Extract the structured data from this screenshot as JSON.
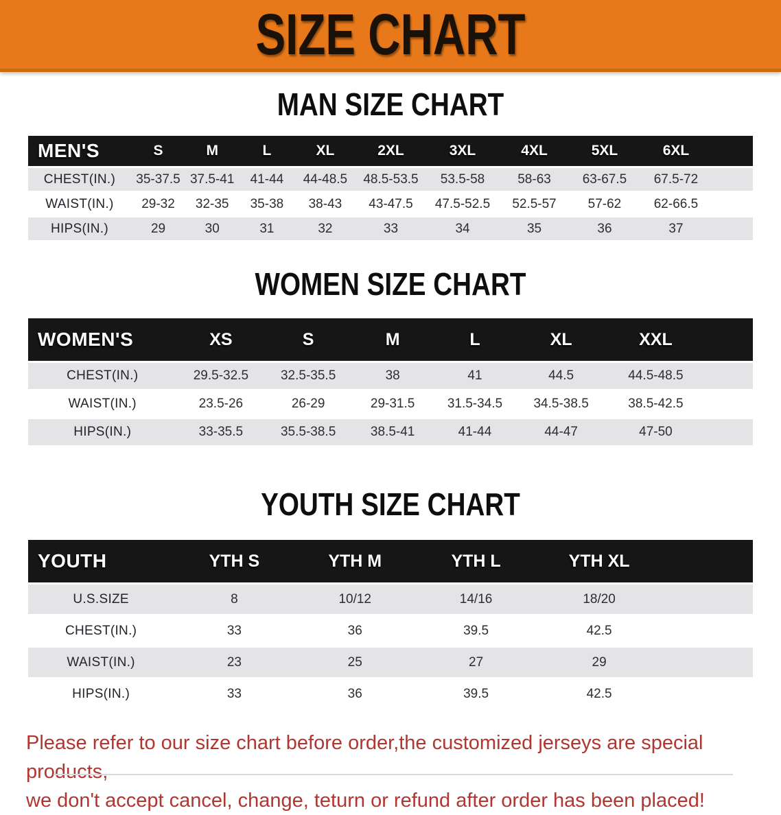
{
  "banner": {
    "title": "SIZE CHART"
  },
  "sections": {
    "men": {
      "title": "MAN SIZE CHART",
      "table": {
        "header_label": "MEN'S",
        "columns": [
          "S",
          "M",
          "L",
          "XL",
          "2XL",
          "3XL",
          "4XL",
          "5XL",
          "6XL"
        ],
        "rows": [
          {
            "label": "CHEST(IN.)",
            "values": [
              "35-37.5",
              "37.5-41",
              "41-44",
              "44-48.5",
              "48.5-53.5",
              "53.5-58",
              "58-63",
              "63-67.5",
              "67.5-72"
            ]
          },
          {
            "label": "WAIST(IN.)",
            "values": [
              "29-32",
              "32-35",
              "35-38",
              "38-43",
              "43-47.5",
              "47.5-52.5",
              "52.5-57",
              "57-62",
              "62-66.5"
            ]
          },
          {
            "label": "HIPS(IN.)",
            "values": [
              "29",
              "30",
              "31",
              "32",
              "33",
              "34",
              "35",
              "36",
              "37"
            ]
          }
        ]
      }
    },
    "women": {
      "title": "WOMEN SIZE CHART",
      "table": {
        "header_label": "WOMEN'S",
        "columns": [
          "XS",
          "S",
          "M",
          "L",
          "XL",
          "XXL"
        ],
        "rows": [
          {
            "label": "CHEST(IN.)",
            "values": [
              "29.5-32.5",
              "32.5-35.5",
              "38",
              "41",
              "44.5",
              "44.5-48.5"
            ]
          },
          {
            "label": "WAIST(IN.)",
            "values": [
              "23.5-26",
              "26-29",
              "29-31.5",
              "31.5-34.5",
              "34.5-38.5",
              "38.5-42.5"
            ]
          },
          {
            "label": "HIPS(IN.)",
            "values": [
              "33-35.5",
              "35.5-38.5",
              "38.5-41",
              "41-44",
              "44-47",
              "47-50"
            ]
          }
        ]
      }
    },
    "youth": {
      "title": "YOUTH SIZE CHART",
      "table": {
        "header_label": "YOUTH",
        "columns": [
          "YTH S",
          "YTH M",
          "YTH L",
          "YTH XL"
        ],
        "rows": [
          {
            "label": "U.S.SIZE",
            "values": [
              "8",
              "10/12",
              "14/16",
              "18/20"
            ]
          },
          {
            "label": "CHEST(IN.)",
            "values": [
              "33",
              "36",
              "39.5",
              "42.5"
            ]
          },
          {
            "label": "WAIST(IN.)",
            "values": [
              "23",
              "25",
              "27",
              "29"
            ]
          },
          {
            "label": "HIPS(IN.)",
            "values": [
              "33",
              "36",
              "39.5",
              "42.5"
            ]
          }
        ]
      }
    }
  },
  "footer": {
    "line1": "Please refer to our size chart before order,the customized jerseys are special products,",
    "line2": "we don't accept cancel, change, teturn or refund after order has been placed!"
  },
  "colors": {
    "banner_orange": "#E8791B",
    "header_bar_black": "#161616",
    "stripe_gray": "#E4E4E6",
    "warning_red": "#B23530"
  }
}
